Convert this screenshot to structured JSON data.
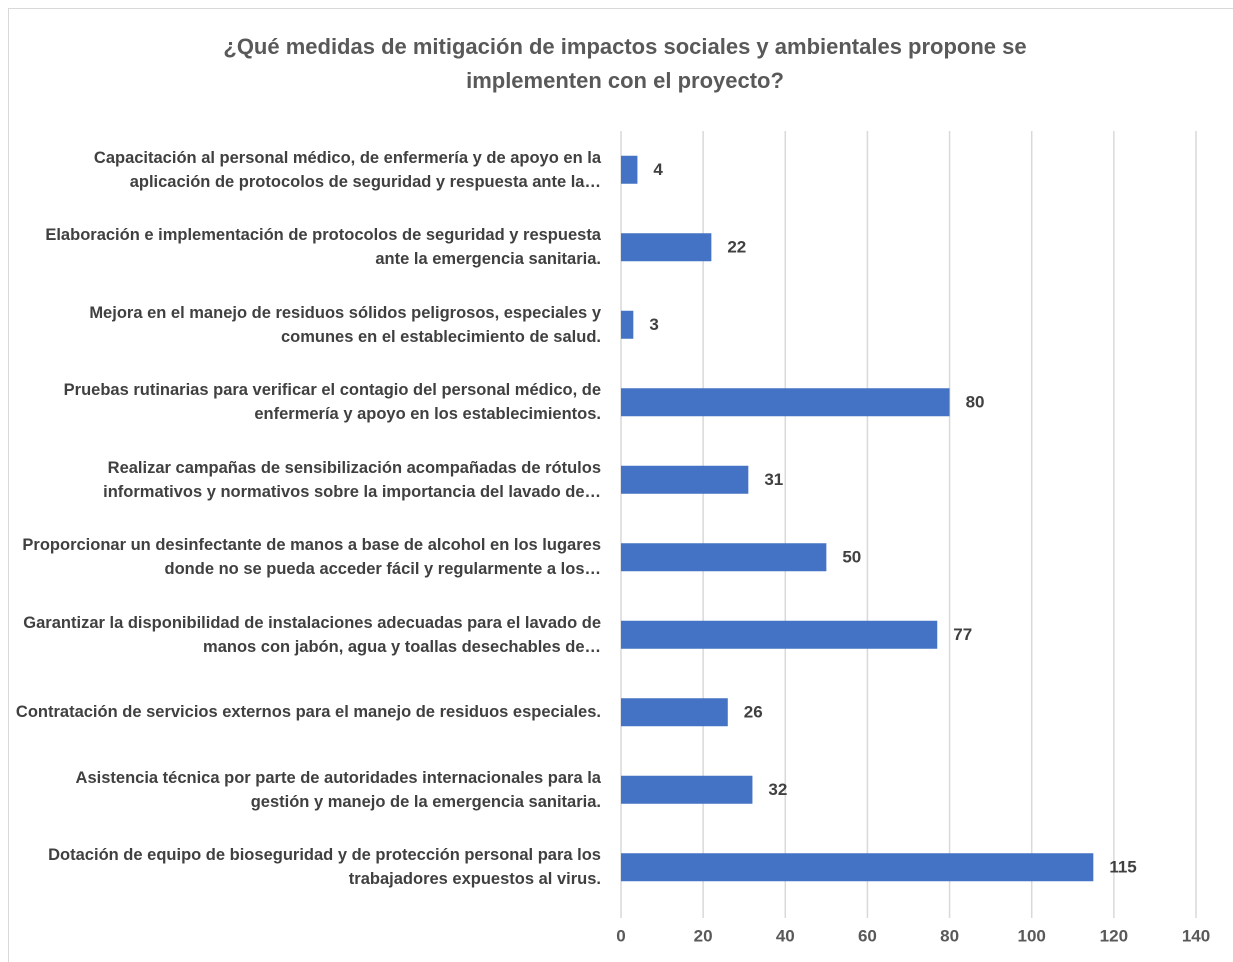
{
  "chart_data": {
    "type": "bar",
    "orientation": "horizontal",
    "title": "¿Qué medidas de mitigación de impactos sociales y ambientales propone se implementen con el proyecto?",
    "categories": [
      "Capacitación al personal médico, de enfermería y de apoyo en la aplicación de protocolos de seguridad y respuesta ante la…",
      "Elaboración e implementación de protocolos de seguridad y respuesta ante la emergencia sanitaria.",
      "Mejora en el manejo de residuos sólidos peligrosos, especiales y comunes en el establecimiento de salud.",
      "Pruebas rutinarias para verificar el contagio del personal médico, de enfermería y apoyo en los establecimientos.",
      "Realizar campañas de sensibilización acompañadas de rótulos informativos y normativos sobre la importancia del lavado de…",
      "Proporcionar un desinfectante de manos a base de alcohol en los lugares donde no se pueda acceder fácil y regularmente a los…",
      "Garantizar la disponibilidad de instalaciones adecuadas para el lavado de manos con jabón, agua y toallas desechables de…",
      "Contratación de servicios externos para el manejo de residuos especiales.",
      "Asistencia técnica por parte de autoridades internacionales para la gestión y manejo de la emergencia sanitaria.",
      "Dotación de equipo de bioseguridad y de protección personal para los trabajadores expuestos al virus."
    ],
    "values": [
      4,
      22,
      3,
      80,
      31,
      50,
      77,
      26,
      32,
      115
    ],
    "color": "#4472c4",
    "xlim": [
      0,
      140
    ],
    "xticks": [
      0,
      20,
      40,
      60,
      80,
      100,
      120,
      140
    ],
    "grid": true
  }
}
